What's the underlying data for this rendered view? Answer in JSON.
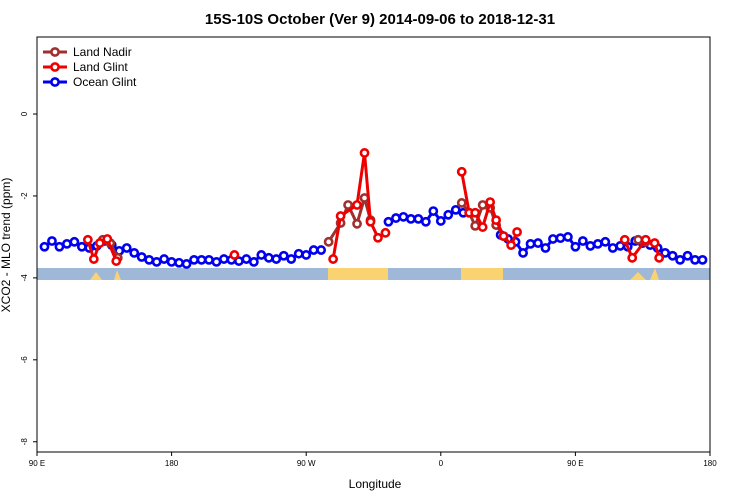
{
  "chart_data": {
    "type": "line",
    "title": "15S-10S October (Ver 9)   2014-09-06 to 2018-12-31",
    "xlabel": "Longitude",
    "ylabel": "XCO2 - MLO trend (ppm)",
    "xlim": [
      90,
      540
    ],
    "ylim": [
      -8.25,
      1.88
    ],
    "xticks": [
      {
        "value": 90,
        "label": "90 E"
      },
      180,
      {
        "value": 270,
        "label": "90 W"
      },
      {
        "value": 360,
        "label": "0"
      },
      {
        "value": 450,
        "label": "90 E"
      },
      {
        "value": 540,
        "label": "180"
      }
    ],
    "yticks": [
      0,
      -2,
      -4,
      -6,
      -8
    ],
    "legend": "top-left",
    "series": [
      {
        "name": "Land Nadir",
        "color": "#a0302e",
        "x": [
          134,
          139,
          144,
          200,
          285,
          293,
          298,
          304,
          309,
          313,
          350,
          374,
          379,
          383,
          388,
          393,
          397,
          402,
          450,
          492,
          497
        ],
        "values": [
          -3.07,
          -3.15,
          -3.51,
          null,
          -3.12,
          -2.66,
          -2.22,
          -2.68,
          -2.05,
          -2.59,
          null,
          -2.17,
          -2.41,
          -2.73,
          -2.22,
          -2.29,
          -2.71,
          -2.98,
          null,
          -3.07,
          -3.12
        ]
      },
      {
        "name": "Land Glint",
        "color": "#ee0000",
        "x": [
          124,
          128,
          132,
          137,
          143,
          180,
          222,
          260,
          288,
          293,
          304,
          309,
          313,
          318,
          323,
          350,
          374,
          379,
          383,
          388,
          393,
          397,
          402,
          407,
          411,
          450,
          483,
          488,
          497,
          503,
          506
        ],
        "values": [
          -3.07,
          -3.54,
          -3.15,
          -3.05,
          -3.59,
          null,
          -3.44,
          null,
          -3.54,
          -2.49,
          -2.22,
          -0.95,
          -2.63,
          -3.02,
          -2.9,
          null,
          -1.41,
          -2.41,
          -2.41,
          -2.76,
          -2.15,
          -2.59,
          -2.98,
          -3.2,
          -2.88,
          null,
          -3.07,
          -3.51,
          -3.07,
          -3.15,
          -3.51
        ]
      },
      {
        "name": "Ocean Glint",
        "color": "#0000ee",
        "x": [
          95,
          100,
          105,
          110,
          115,
          120,
          125,
          130,
          135,
          140,
          145,
          150,
          155,
          160,
          165,
          170,
          175,
          180,
          185,
          190,
          195,
          200,
          205,
          210,
          215,
          220,
          225,
          230,
          235,
          240,
          245,
          250,
          255,
          260,
          265,
          270,
          275,
          280,
          300,
          325,
          330,
          335,
          340,
          345,
          350,
          355,
          360,
          365,
          370,
          375,
          390,
          400,
          405,
          410,
          415,
          420,
          425,
          430,
          435,
          440,
          445,
          450,
          455,
          460,
          465,
          470,
          475,
          480,
          485,
          490,
          495,
          500,
          505,
          510,
          515,
          520,
          525,
          530,
          535
        ],
        "values": [
          -3.24,
          -3.1,
          -3.24,
          -3.17,
          -3.12,
          -3.24,
          -3.27,
          -3.22,
          -3.1,
          -3.2,
          -3.34,
          -3.27,
          -3.39,
          -3.49,
          -3.56,
          -3.61,
          -3.54,
          -3.61,
          -3.63,
          -3.66,
          -3.56,
          -3.56,
          -3.56,
          -3.61,
          -3.54,
          -3.56,
          -3.59,
          -3.54,
          -3.61,
          -3.44,
          -3.51,
          -3.54,
          -3.46,
          -3.54,
          -3.41,
          -3.44,
          -3.32,
          -3.32,
          null,
          -2.63,
          -2.54,
          -2.51,
          -2.56,
          -2.56,
          -2.63,
          -2.37,
          -2.61,
          -2.46,
          -2.34,
          -2.41,
          null,
          -2.95,
          -3.05,
          -3.12,
          -3.39,
          -3.17,
          -3.15,
          -3.27,
          -3.05,
          -3.03,
          -3.0,
          -3.24,
          -3.1,
          -3.22,
          -3.17,
          -3.12,
          -3.27,
          -3.22,
          -3.24,
          -3.1,
          -3.15,
          -3.2,
          -3.27,
          -3.39,
          -3.46,
          -3.56,
          -3.46,
          -3.56,
          -3.56
        ]
      }
    ]
  }
}
